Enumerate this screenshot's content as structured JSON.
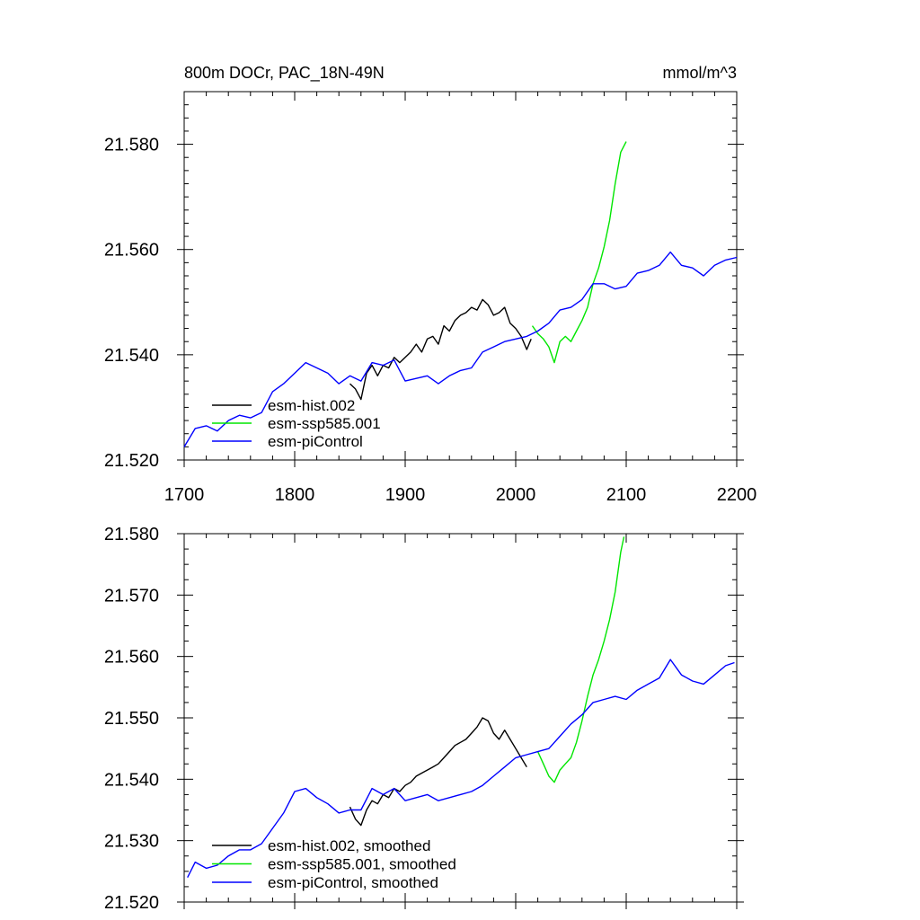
{
  "chart_data": [
    {
      "type": "line",
      "title_left": "800m DOCr, PAC_18N-49N",
      "title_right": "mmol/m^3",
      "xlim": [
        1700,
        2200
      ],
      "ylim": [
        21.52,
        21.59
      ],
      "x_ticks": [
        1700,
        1800,
        1900,
        2000,
        2100,
        2200
      ],
      "x_tick_labels": [
        "1700",
        "1800",
        "1900",
        "2000",
        "2100",
        "2200"
      ],
      "y_ticks": [
        21.52,
        21.54,
        21.56,
        21.58
      ],
      "y_tick_labels": [
        "21.520",
        "21.540",
        "21.560",
        "21.580"
      ],
      "legend_position": "bottom-left",
      "series": [
        {
          "name": "esm-hist.002",
          "color": "#000000",
          "x": [
            1850,
            1855,
            1860,
            1865,
            1870,
            1875,
            1880,
            1885,
            1890,
            1895,
            1900,
            1905,
            1910,
            1915,
            1920,
            1925,
            1930,
            1935,
            1940,
            1945,
            1950,
            1955,
            1960,
            1965,
            1970,
            1975,
            1980,
            1985,
            1990,
            1995,
            2000,
            2005,
            2010,
            2014
          ],
          "values": [
            21.5345,
            21.5335,
            21.5315,
            21.5365,
            21.538,
            21.536,
            21.538,
            21.5375,
            21.5395,
            21.5385,
            21.5395,
            21.5405,
            21.542,
            21.5405,
            21.543,
            21.5435,
            21.542,
            21.5455,
            21.5445,
            21.5465,
            21.5475,
            21.548,
            21.549,
            21.5485,
            21.5505,
            21.5495,
            21.5475,
            21.548,
            21.549,
            21.546,
            21.545,
            21.5435,
            21.541,
            21.543
          ]
        },
        {
          "name": "esm-ssp585.001",
          "color": "#00e600",
          "x": [
            2015,
            2020,
            2025,
            2030,
            2035,
            2040,
            2045,
            2050,
            2055,
            2060,
            2065,
            2070,
            2075,
            2080,
            2085,
            2090,
            2095,
            2100
          ],
          "values": [
            21.5455,
            21.544,
            21.543,
            21.5415,
            21.5385,
            21.5425,
            21.5435,
            21.5425,
            21.5445,
            21.5465,
            21.549,
            21.5535,
            21.5565,
            21.5605,
            21.5655,
            21.5725,
            21.5785,
            21.5805
          ]
        },
        {
          "name": "esm-piControl",
          "color": "#0000ff",
          "x": [
            1700,
            1710,
            1720,
            1730,
            1740,
            1750,
            1760,
            1770,
            1780,
            1790,
            1800,
            1810,
            1820,
            1830,
            1840,
            1850,
            1860,
            1870,
            1880,
            1890,
            1900,
            1910,
            1920,
            1930,
            1940,
            1950,
            1960,
            1970,
            1980,
            1990,
            2000,
            2010,
            2020,
            2030,
            2040,
            2050,
            2060,
            2070,
            2080,
            2090,
            2100,
            2110,
            2120,
            2130,
            2140,
            2150,
            2160,
            2170,
            2180,
            2190,
            2200
          ],
          "values": [
            21.5225,
            21.526,
            21.5265,
            21.5255,
            21.5275,
            21.5285,
            21.528,
            21.529,
            21.533,
            21.5345,
            21.5365,
            21.5385,
            21.5375,
            21.5365,
            21.5345,
            21.536,
            21.535,
            21.5385,
            21.538,
            21.539,
            21.535,
            21.5355,
            21.536,
            21.5345,
            21.536,
            21.537,
            21.5375,
            21.5405,
            21.5415,
            21.5425,
            21.543,
            21.5435,
            21.5445,
            21.546,
            21.5485,
            21.549,
            21.5505,
            21.5535,
            21.5535,
            21.5525,
            21.553,
            21.5555,
            21.556,
            21.557,
            21.5595,
            21.557,
            21.5565,
            21.555,
            21.557,
            21.558,
            21.5585
          ]
        }
      ]
    },
    {
      "type": "line",
      "xlim": [
        1700,
        2200
      ],
      "ylim": [
        21.52,
        21.58
      ],
      "x_ticks": [
        1700,
        1800,
        1900,
        2000,
        2100,
        2200
      ],
      "y_ticks": [
        21.52,
        21.53,
        21.54,
        21.55,
        21.56,
        21.57,
        21.58
      ],
      "y_tick_labels": [
        "21.520",
        "21.530",
        "21.540",
        "21.550",
        "21.560",
        "21.570",
        "21.580"
      ],
      "legend_position": "bottom-left",
      "series": [
        {
          "name": "esm-hist.002, smoothed",
          "color": "#000000",
          "x": [
            1850,
            1855,
            1860,
            1865,
            1870,
            1875,
            1880,
            1885,
            1890,
            1895,
            1900,
            1905,
            1910,
            1915,
            1920,
            1925,
            1930,
            1935,
            1940,
            1945,
            1950,
            1955,
            1960,
            1965,
            1970,
            1975,
            1980,
            1985,
            1990,
            1995,
            2000,
            2005,
            2010
          ],
          "values": [
            21.5355,
            21.5335,
            21.5325,
            21.535,
            21.5365,
            21.536,
            21.5375,
            21.537,
            21.5385,
            21.538,
            21.539,
            21.5395,
            21.5405,
            21.541,
            21.5415,
            21.542,
            21.5425,
            21.5435,
            21.5445,
            21.5455,
            21.546,
            21.5465,
            21.5475,
            21.5485,
            21.55,
            21.5495,
            21.5475,
            21.5465,
            21.548,
            21.5465,
            21.545,
            21.5435,
            21.542
          ]
        },
        {
          "name": "esm-ssp585.001, smoothed",
          "color": "#00e600",
          "x": [
            2020,
            2025,
            2030,
            2035,
            2040,
            2045,
            2050,
            2055,
            2060,
            2065,
            2070,
            2075,
            2080,
            2085,
            2090,
            2095,
            2098
          ],
          "values": [
            21.5445,
            21.5425,
            21.5405,
            21.5395,
            21.5415,
            21.5425,
            21.5435,
            21.546,
            21.5495,
            21.5535,
            21.557,
            21.5595,
            21.5625,
            21.566,
            21.5705,
            21.577,
            21.5795
          ]
        },
        {
          "name": "esm-piControl, smoothed",
          "color": "#0000ff",
          "x": [
            1703,
            1710,
            1720,
            1730,
            1740,
            1750,
            1760,
            1770,
            1780,
            1790,
            1800,
            1810,
            1820,
            1830,
            1840,
            1850,
            1860,
            1870,
            1880,
            1890,
            1900,
            1910,
            1920,
            1930,
            1940,
            1950,
            1960,
            1970,
            1980,
            1990,
            2000,
            2010,
            2020,
            2030,
            2040,
            2050,
            2060,
            2070,
            2080,
            2090,
            2100,
            2110,
            2120,
            2130,
            2140,
            2150,
            2160,
            2170,
            2180,
            2190,
            2198
          ],
          "values": [
            21.524,
            21.5265,
            21.5255,
            21.526,
            21.5275,
            21.5285,
            21.5285,
            21.5295,
            21.532,
            21.5345,
            21.538,
            21.5385,
            21.537,
            21.536,
            21.5345,
            21.535,
            21.535,
            21.5385,
            21.5375,
            21.5385,
            21.5365,
            21.537,
            21.5375,
            21.5365,
            21.537,
            21.5375,
            21.538,
            21.539,
            21.5405,
            21.542,
            21.5435,
            21.544,
            21.5445,
            21.545,
            21.547,
            21.549,
            21.5505,
            21.5525,
            21.553,
            21.5535,
            21.553,
            21.5545,
            21.5555,
            21.5565,
            21.5595,
            21.557,
            21.556,
            21.5555,
            21.557,
            21.5585,
            21.559
          ]
        }
      ]
    }
  ]
}
